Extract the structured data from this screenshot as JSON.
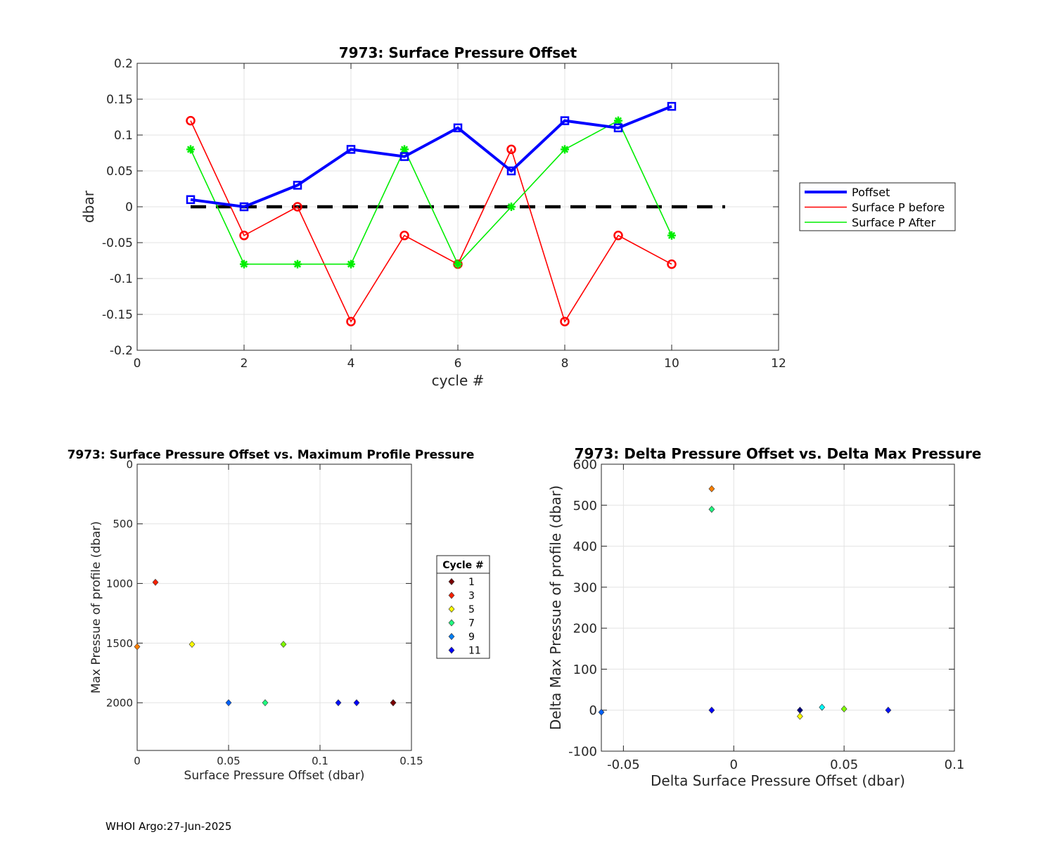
{
  "footer": "WHOI Argo:27-Jun-2025",
  "chart_data": [
    {
      "type": "line",
      "title": "7973: Surface Pressure Offset",
      "xlabel": "cycle #",
      "ylabel": "dbar",
      "xlim": [
        0,
        12
      ],
      "ylim": [
        -0.2,
        0.2
      ],
      "xticks": [
        0,
        2,
        4,
        6,
        8,
        10,
        12
      ],
      "xtick_labels": [
        "0",
        "2",
        "4",
        "6",
        "8",
        "10",
        "12"
      ],
      "yticks": [
        -0.2,
        -0.15,
        -0.1,
        -0.05,
        0,
        0.05,
        0.1,
        0.15,
        0.2
      ],
      "ytick_labels": [
        "-0.2",
        "-0.15",
        "-0.1",
        "-0.05",
        "0",
        "0.05",
        "0.1",
        "0.15",
        "0.2"
      ],
      "grid": true,
      "legend_position": "right, outside",
      "x": [
        1,
        2,
        3,
        4,
        5,
        6,
        7,
        8,
        9,
        10
      ],
      "series": [
        {
          "name": "Poffset",
          "color": "#0000ff",
          "marker": "square",
          "values": [
            0.01,
            0,
            0.03,
            0.08,
            0.07,
            0.11,
            0.05,
            0.12,
            0.11,
            0.14
          ]
        },
        {
          "name": "Surface P before",
          "color": "#ff0000",
          "marker": "circle",
          "values": [
            0.12,
            -0.04,
            0,
            -0.16,
            -0.04,
            -0.08,
            0.08,
            -0.16,
            -0.04,
            -0.08
          ]
        },
        {
          "name": "Surface P After",
          "color": "#00ee00",
          "marker": "asterisk",
          "values": [
            0.08,
            -0.08,
            -0.08,
            -0.08,
            0.08,
            -0.08,
            0,
            0.08,
            0.12,
            -0.04
          ]
        }
      ],
      "reference_line": {
        "y": 0,
        "x_range": [
          1,
          11
        ],
        "style": "dashed",
        "color": "#000000"
      }
    },
    {
      "type": "scatter",
      "title": "7973: Surface Pressure Offset vs. Maximum Profile Pressure",
      "xlabel": "Surface Pressure Offset (dbar)",
      "ylabel": "Max Pressue of profile (dbar)",
      "xlim": [
        0,
        0.15
      ],
      "ylim": [
        0,
        2400
      ],
      "y_reversed": true,
      "xticks": [
        0,
        0.05,
        0.1,
        0.15
      ],
      "xtick_labels": [
        "0",
        "0.05",
        "0.1",
        "0.15"
      ],
      "yticks": [
        0,
        500,
        1000,
        1500,
        2000
      ],
      "ytick_labels": [
        "0",
        "500",
        "1000",
        "1500",
        "2000"
      ],
      "grid": true,
      "legend": {
        "title": "Cycle #",
        "position": "right, outside",
        "entries": [
          {
            "label": "1",
            "color": "#7a0000"
          },
          {
            "label": "3",
            "color": "#ff2000"
          },
          {
            "label": "5",
            "color": "#ffff00"
          },
          {
            "label": "7",
            "color": "#20ff80"
          },
          {
            "label": "9",
            "color": "#0080ff"
          },
          {
            "label": "11",
            "color": "#0000ff"
          }
        ]
      },
      "points": [
        {
          "x": 0.01,
          "y": 990,
          "color": "#ff2000"
        },
        {
          "x": 0.0,
          "y": 1530,
          "color": "#ff7f00"
        },
        {
          "x": 0.03,
          "y": 1510,
          "color": "#ffff00"
        },
        {
          "x": 0.08,
          "y": 1510,
          "color": "#80ff00"
        },
        {
          "x": 0.05,
          "y": 2000,
          "color": "#0060ff"
        },
        {
          "x": 0.07,
          "y": 2000,
          "color": "#20ff80"
        },
        {
          "x": 0.11,
          "y": 2000,
          "color": "#0010ff"
        },
        {
          "x": 0.12,
          "y": 2000,
          "color": "#0000ff"
        },
        {
          "x": 0.14,
          "y": 2000,
          "color": "#000080"
        },
        {
          "x": 0.14,
          "y": 2000,
          "color": "#7a0000"
        }
      ]
    },
    {
      "type": "scatter",
      "title": "7973: Delta Pressure Offset vs. Delta Max Pressure",
      "xlabel": "Delta Surface Pressure Offset (dbar)",
      "ylabel": "Delta Max Pressue of profile (dbar)",
      "xlim": [
        -0.06,
        0.1
      ],
      "ylim": [
        -100,
        600
      ],
      "xticks": [
        -0.05,
        0,
        0.05,
        0.1
      ],
      "xtick_labels": [
        "-0.05",
        "0",
        "0.05",
        "0.1"
      ],
      "yticks": [
        -100,
        0,
        100,
        200,
        300,
        400,
        500,
        600
      ],
      "ytick_labels": [
        "-100",
        "0",
        "100",
        "200",
        "300",
        "400",
        "500",
        "600"
      ],
      "grid": true,
      "points": [
        {
          "x": -0.01,
          "y": 540,
          "color": "#ff7f00"
        },
        {
          "x": -0.01,
          "y": 490,
          "color": "#20ff80"
        },
        {
          "x": -0.01,
          "y": 0,
          "color": "#0000ff"
        },
        {
          "x": -0.06,
          "y": -5,
          "color": "#0060ff"
        },
        {
          "x": 0.03,
          "y": 0,
          "color": "#000080"
        },
        {
          "x": 0.03,
          "y": -15,
          "color": "#ffff00"
        },
        {
          "x": 0.04,
          "y": 7,
          "color": "#00ffff"
        },
        {
          "x": 0.05,
          "y": 3,
          "color": "#80ff00"
        },
        {
          "x": 0.07,
          "y": 0,
          "color": "#0010ff"
        }
      ]
    }
  ]
}
